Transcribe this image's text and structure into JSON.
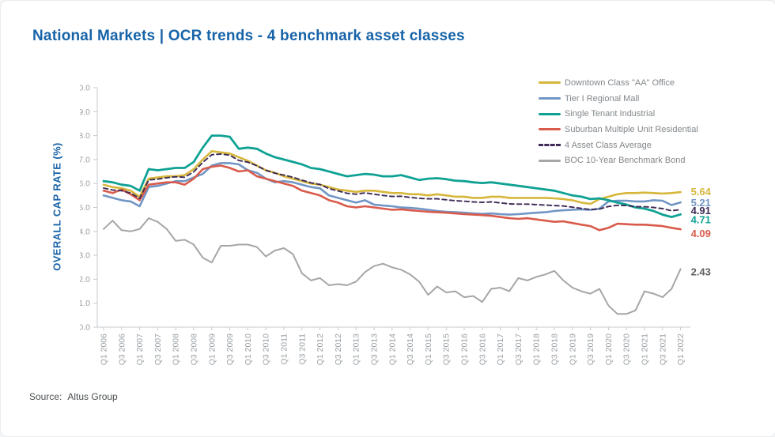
{
  "slide": {
    "title": "National Markets | OCR trends - 4 benchmark asset classes",
    "source_label": "Source:",
    "source_value": "Altus Group",
    "title_color": "#1763A8"
  },
  "chart_data": {
    "type": "line",
    "title": "National Markets | OCR trends - 4 benchmark asset classes",
    "xlabel": "",
    "ylabel": "OVERALL CAP RATE (%)",
    "ylim": [
      0.0,
      10.0
    ],
    "grid": false,
    "legend_position": "top-right",
    "ytick_labels": [
      "0.0",
      "1.0",
      "2.0",
      "3.0",
      "4.0",
      "5.0",
      "6.0",
      "7.0",
      "8.0",
      "9.0",
      "10.0"
    ],
    "xtick_labels": [
      "Q1 2006",
      "Q3 2006",
      "Q1 2007",
      "Q3 2007",
      "Q1 2008",
      "Q3 2008",
      "Q1 2009",
      "Q3 2009",
      "Q1 2010",
      "Q3 2010",
      "Q1 2011",
      "Q3 2011",
      "Q1 2012",
      "Q3 2012",
      "Q1 2013",
      "Q3 2013",
      "Q1 2014",
      "Q3 2014",
      "Q1 2015",
      "Q3 2015",
      "Q1 2016",
      "Q3 2016",
      "Q1 2017",
      "Q3 2017",
      "Q1 2018",
      "Q3 2018",
      "Q1 2019",
      "Q3 2019",
      "Q1 2020",
      "Q3 2020",
      "Q1 2021",
      "Q3 2021",
      "Q1 2022"
    ],
    "categories": [
      "Q1 2006",
      "Q2 2006",
      "Q3 2006",
      "Q4 2006",
      "Q1 2007",
      "Q2 2007",
      "Q3 2007",
      "Q4 2007",
      "Q1 2008",
      "Q2 2008",
      "Q3 2008",
      "Q4 2008",
      "Q1 2009",
      "Q2 2009",
      "Q3 2009",
      "Q4 2009",
      "Q1 2010",
      "Q2 2010",
      "Q3 2010",
      "Q4 2010",
      "Q1 2011",
      "Q2 2011",
      "Q3 2011",
      "Q4 2011",
      "Q1 2012",
      "Q2 2012",
      "Q3 2012",
      "Q4 2012",
      "Q1 2013",
      "Q2 2013",
      "Q3 2013",
      "Q4 2013",
      "Q1 2014",
      "Q2 2014",
      "Q3 2014",
      "Q4 2014",
      "Q1 2015",
      "Q2 2015",
      "Q3 2015",
      "Q4 2015",
      "Q1 2016",
      "Q2 2016",
      "Q3 2016",
      "Q4 2016",
      "Q1 2017",
      "Q2 2017",
      "Q3 2017",
      "Q4 2017",
      "Q1 2018",
      "Q2 2018",
      "Q3 2018",
      "Q4 2018",
      "Q1 2019",
      "Q2 2019",
      "Q3 2019",
      "Q4 2019",
      "Q1 2020",
      "Q2 2020",
      "Q3 2020",
      "Q4 2020",
      "Q1 2021",
      "Q2 2021",
      "Q3 2021",
      "Q4 2021",
      "Q1 2022"
    ],
    "series": [
      {
        "key": "office",
        "name": "Downtown Class \"AA\" Office",
        "color": "#D6B73C",
        "dashed": false,
        "end_label": "5.64",
        "values": [
          5.95,
          5.85,
          5.8,
          5.7,
          5.45,
          6.2,
          6.25,
          6.3,
          6.3,
          6.35,
          6.6,
          7.0,
          7.35,
          7.3,
          7.25,
          7.1,
          6.95,
          6.75,
          6.55,
          6.45,
          6.3,
          6.2,
          6.1,
          6.0,
          5.95,
          5.85,
          5.75,
          5.7,
          5.65,
          5.7,
          5.7,
          5.65,
          5.6,
          5.6,
          5.55,
          5.55,
          5.5,
          5.55,
          5.5,
          5.45,
          5.45,
          5.4,
          5.4,
          5.45,
          5.45,
          5.4,
          5.4,
          5.4,
          5.4,
          5.4,
          5.38,
          5.35,
          5.3,
          5.2,
          5.15,
          5.35,
          5.45,
          5.55,
          5.6,
          5.6,
          5.62,
          5.6,
          5.58,
          5.6,
          5.64
        ]
      },
      {
        "key": "mall",
        "name": "Tier I Regional Mall",
        "color": "#7195C5",
        "dashed": false,
        "end_label": "5.21",
        "values": [
          5.5,
          5.4,
          5.3,
          5.25,
          5.05,
          5.85,
          5.9,
          6.0,
          6.1,
          6.1,
          6.25,
          6.4,
          6.75,
          6.85,
          6.85,
          6.8,
          6.55,
          6.45,
          6.2,
          6.05,
          6.1,
          6.05,
          5.95,
          5.85,
          5.8,
          5.5,
          5.4,
          5.3,
          5.2,
          5.3,
          5.12,
          5.08,
          5.05,
          5.0,
          4.98,
          4.95,
          4.9,
          4.85,
          4.82,
          4.8,
          4.78,
          4.75,
          4.73,
          4.75,
          4.72,
          4.7,
          4.72,
          4.75,
          4.78,
          4.8,
          4.85,
          4.88,
          4.9,
          4.92,
          4.9,
          4.95,
          5.25,
          5.28,
          5.28,
          5.25,
          5.25,
          5.3,
          5.28,
          5.1,
          5.21
        ]
      },
      {
        "key": "industrial",
        "name": "Single Tenant Industrial",
        "color": "#0FA294",
        "dashed": false,
        "end_label": "4.71",
        "values": [
          6.1,
          6.05,
          5.95,
          5.9,
          5.7,
          6.6,
          6.55,
          6.6,
          6.65,
          6.65,
          6.9,
          7.5,
          8.0,
          8.0,
          7.95,
          7.45,
          7.5,
          7.45,
          7.25,
          7.1,
          7.0,
          6.9,
          6.8,
          6.65,
          6.6,
          6.5,
          6.4,
          6.3,
          6.35,
          6.4,
          6.37,
          6.3,
          6.3,
          6.35,
          6.25,
          6.15,
          6.2,
          6.22,
          6.18,
          6.12,
          6.1,
          6.05,
          6.02,
          6.05,
          6.0,
          5.95,
          5.9,
          5.85,
          5.8,
          5.75,
          5.7,
          5.6,
          5.5,
          5.45,
          5.35,
          5.38,
          5.3,
          5.2,
          5.12,
          5.0,
          4.95,
          4.85,
          4.7,
          4.6,
          4.71
        ]
      },
      {
        "key": "residential",
        "name": "Suburban Multiple Unit Residential",
        "color": "#D95B4B",
        "dashed": false,
        "end_label": "4.09",
        "values": [
          5.7,
          5.6,
          5.75,
          5.55,
          5.3,
          5.95,
          6.0,
          6.05,
          6.05,
          5.95,
          6.2,
          6.6,
          6.7,
          6.75,
          6.65,
          6.5,
          6.55,
          6.3,
          6.2,
          6.1,
          6.0,
          5.9,
          5.7,
          5.6,
          5.5,
          5.3,
          5.2,
          5.05,
          5.0,
          5.05,
          5.0,
          4.95,
          4.9,
          4.92,
          4.88,
          4.85,
          4.82,
          4.8,
          4.78,
          4.75,
          4.72,
          4.7,
          4.68,
          4.65,
          4.6,
          4.55,
          4.52,
          4.55,
          4.5,
          4.45,
          4.4,
          4.42,
          4.35,
          4.28,
          4.22,
          4.05,
          4.15,
          4.32,
          4.3,
          4.28,
          4.28,
          4.25,
          4.22,
          4.15,
          4.09
        ]
      },
      {
        "key": "average",
        "name": "4 Asset Class Average",
        "color": "#3E2A56",
        "dashed": true,
        "end_label": "4.91",
        "values": [
          5.81,
          5.73,
          5.7,
          5.6,
          5.38,
          6.15,
          6.18,
          6.24,
          6.28,
          6.26,
          6.49,
          6.88,
          7.2,
          7.23,
          7.18,
          6.96,
          6.89,
          6.74,
          6.55,
          6.43,
          6.35,
          6.26,
          6.14,
          6.03,
          5.96,
          5.79,
          5.69,
          5.59,
          5.55,
          5.61,
          5.55,
          5.5,
          5.46,
          5.47,
          5.42,
          5.38,
          5.36,
          5.36,
          5.32,
          5.28,
          5.26,
          5.23,
          5.21,
          5.23,
          5.19,
          5.15,
          5.14,
          5.14,
          5.12,
          5.1,
          5.08,
          5.06,
          5.01,
          4.96,
          4.91,
          4.93,
          5.04,
          5.09,
          5.08,
          5.03,
          5.03,
          5.0,
          4.95,
          4.86,
          4.91
        ]
      },
      {
        "key": "bond",
        "name": "BOC 10-Year Benchmark Bond",
        "color": "#A6A6A6",
        "dashed": false,
        "end_label": "2.43",
        "end_label_color": "#5d6165",
        "values": [
          4.1,
          4.45,
          4.05,
          4.0,
          4.1,
          4.55,
          4.4,
          4.1,
          3.6,
          3.65,
          3.45,
          2.9,
          2.7,
          3.4,
          3.4,
          3.45,
          3.45,
          3.35,
          2.95,
          3.2,
          3.3,
          3.05,
          2.25,
          1.95,
          2.05,
          1.75,
          1.8,
          1.75,
          1.9,
          2.3,
          2.55,
          2.65,
          2.5,
          2.4,
          2.2,
          1.9,
          1.35,
          1.7,
          1.45,
          1.5,
          1.25,
          1.3,
          1.05,
          1.6,
          1.65,
          1.5,
          2.05,
          1.95,
          2.1,
          2.2,
          2.35,
          1.95,
          1.65,
          1.5,
          1.4,
          1.6,
          0.9,
          0.55,
          0.55,
          0.7,
          1.5,
          1.4,
          1.25,
          1.6,
          2.43
        ]
      }
    ]
  }
}
